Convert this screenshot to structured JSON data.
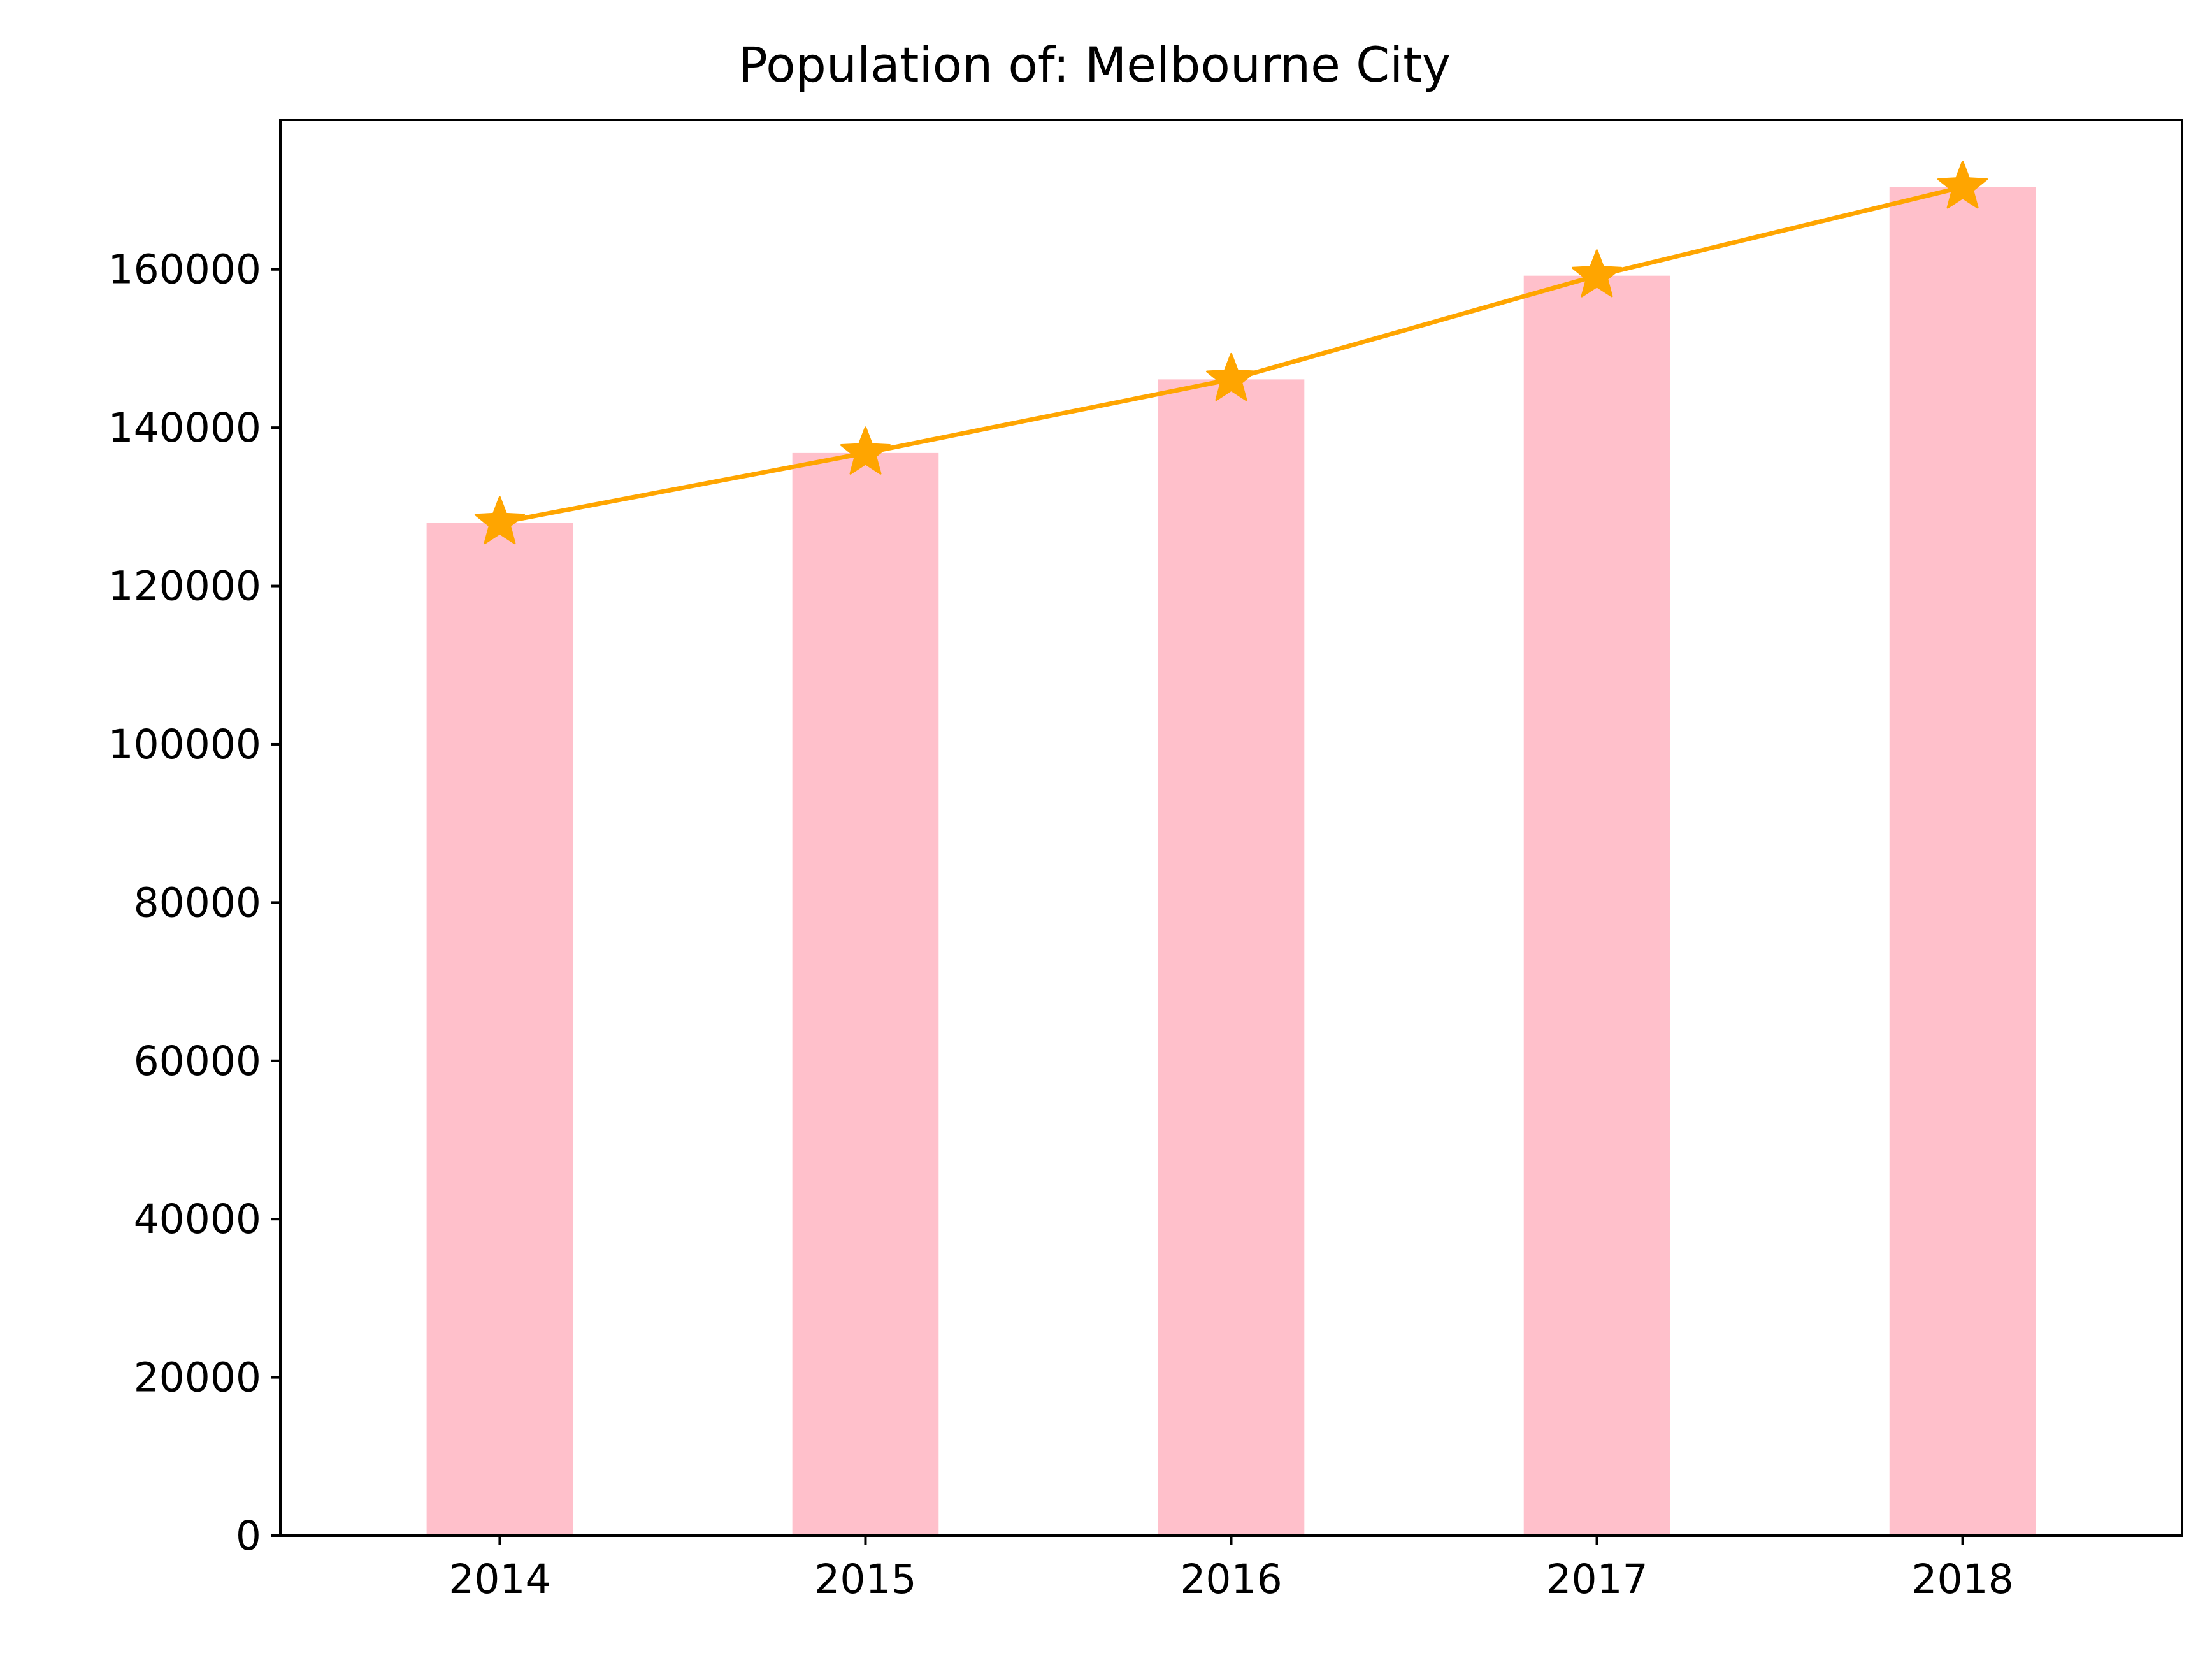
{
  "colors": {
    "bar": "#ffc0cb",
    "line": "#ffa500",
    "axis": "#000000",
    "background": "#ffffff"
  },
  "chart_data": {
    "type": "bar",
    "title": "Population of: Melbourne City",
    "xlabel": "",
    "ylabel": "",
    "categories": [
      "2014",
      "2015",
      "2016",
      "2017",
      "2018"
    ],
    "series": [
      {
        "type": "bar",
        "values": [
          128000,
          136800,
          146100,
          159200,
          170400
        ]
      },
      {
        "type": "line",
        "marker": "star",
        "values": [
          128000,
          136800,
          146100,
          159200,
          170400
        ]
      }
    ],
    "yticks": [
      0,
      20000,
      40000,
      60000,
      80000,
      100000,
      120000,
      140000,
      160000
    ],
    "ytick_labels": [
      "0",
      "20000",
      "40000",
      "60000",
      "80000",
      "100000",
      "120000",
      "140000",
      "160000"
    ],
    "ylim": [
      0,
      178900
    ],
    "grid": false,
    "legend": "none"
  }
}
